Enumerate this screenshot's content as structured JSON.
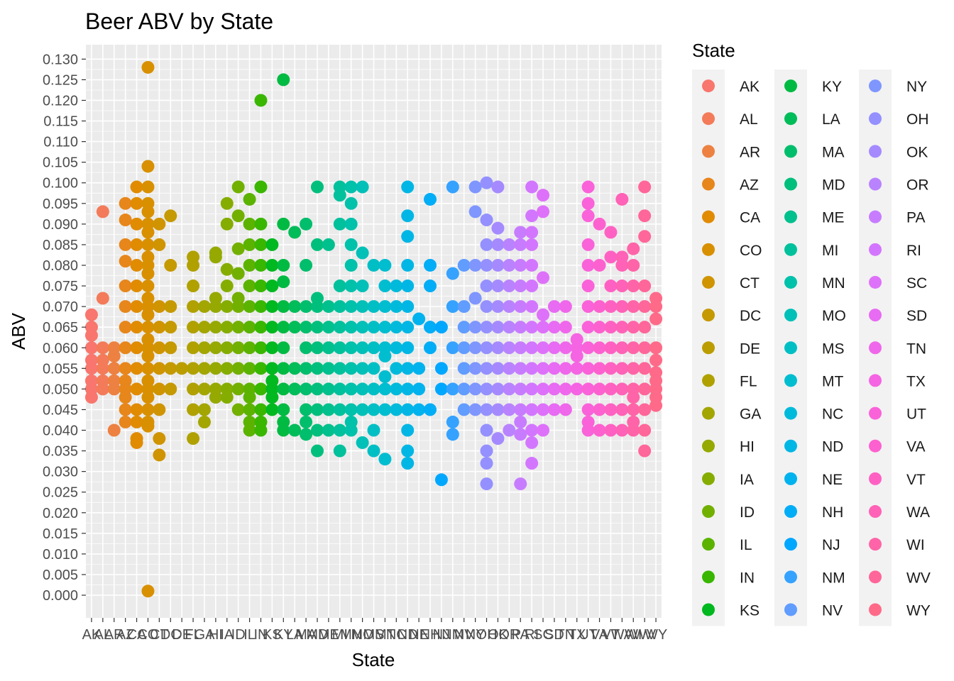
{
  "chart_data": {
    "type": "scatter",
    "title": "Beer ABV by State",
    "xlabel": "State",
    "ylabel": "ABV",
    "ylim": [
      -0.0055,
      0.1335
    ],
    "grid": true,
    "legend_title": "State",
    "legend_position": "right",
    "y_ticks": [
      "0.000",
      "0.005",
      "0.010",
      "0.015",
      "0.020",
      "0.025",
      "0.030",
      "0.035",
      "0.040",
      "0.045",
      "0.050",
      "0.055",
      "0.060",
      "0.065",
      "0.070",
      "0.075",
      "0.080",
      "0.085",
      "0.090",
      "0.095",
      "0.100",
      "0.105",
      "0.110",
      "0.115",
      "0.120",
      "0.125",
      "0.130"
    ],
    "categories": [
      "AK",
      "AL",
      "AR",
      "AZ",
      "CA",
      "CO",
      "CT",
      "DC",
      "DE",
      "FL",
      "GA",
      "HI",
      "IA",
      "ID",
      "IL",
      "IN",
      "KS",
      "KY",
      "LA",
      "MA",
      "MD",
      "ME",
      "MI",
      "MN",
      "MO",
      "MS",
      "MT",
      "NC",
      "ND",
      "NE",
      "NH",
      "NJ",
      "NM",
      "NV",
      "NY",
      "OH",
      "OK",
      "OR",
      "PA",
      "RI",
      "SC",
      "SD",
      "TN",
      "TX",
      "UT",
      "VA",
      "VT",
      "WA",
      "WI",
      "WV",
      "WY"
    ],
    "colors": [
      "#F8766D",
      "#F37B59",
      "#ED8141",
      "#E7861B",
      "#E08B00",
      "#D89000",
      "#CF9400",
      "#C59900",
      "#BB9D00",
      "#B0A100",
      "#A3A500",
      "#95A900",
      "#85AD00",
      "#72B000",
      "#5BB300",
      "#39B600",
      "#00B81F",
      "#00BA42",
      "#00BC59",
      "#00BE6C",
      "#00BF7D",
      "#00C08D",
      "#00C19C",
      "#00C1AA",
      "#00C0B8",
      "#00BFC4",
      "#00BDD0",
      "#00BADB",
      "#00B6E5",
      "#00B2EE",
      "#00ADF6",
      "#00A7FF",
      "#35A2FF",
      "#619CFF",
      "#7F96FF",
      "#9590FF",
      "#A58AFF",
      "#B983FF",
      "#C77CFF",
      "#D376FF",
      "#DE71F9",
      "#E76BF3",
      "#EF67EB",
      "#F564E3",
      "#FA62D9",
      "#FD61CF",
      "#FF61C3",
      "#FF62B6",
      "#FF64A8",
      "#FF6699",
      "#FF6A89"
    ],
    "values": [
      [
        0.048,
        0.05,
        0.052,
        0.055,
        0.057,
        0.06,
        0.063,
        0.065,
        0.068
      ],
      [
        0.05,
        0.052,
        0.055,
        0.057,
        0.06,
        0.072,
        0.093
      ],
      [
        0.04,
        0.05,
        0.052,
        0.055,
        0.058,
        0.06
      ],
      [
        0.042,
        0.045,
        0.048,
        0.05,
        0.052,
        0.055,
        0.06,
        0.065,
        0.07,
        0.075,
        0.081,
        0.085,
        0.091,
        0.095
      ],
      [
        0.037,
        0.038,
        0.042,
        0.045,
        0.05,
        0.055,
        0.06,
        0.065,
        0.07,
        0.075,
        0.08,
        0.085,
        0.09,
        0.095,
        0.099
      ],
      [
        0.001,
        0.041,
        0.042,
        0.045,
        0.048,
        0.05,
        0.052,
        0.055,
        0.058,
        0.06,
        0.062,
        0.065,
        0.068,
        0.07,
        0.072,
        0.075,
        0.078,
        0.08,
        0.082,
        0.085,
        0.088,
        0.09,
        0.093,
        0.095,
        0.099,
        0.104,
        0.128
      ],
      [
        0.034,
        0.038,
        0.045,
        0.05,
        0.055,
        0.06,
        0.065,
        0.07,
        0.085,
        0.09
      ],
      [
        0.05,
        0.055,
        0.06,
        0.065,
        0.07,
        0.08,
        0.092
      ],
      [
        0.055
      ],
      [
        0.038,
        0.045,
        0.05,
        0.055,
        0.06,
        0.065,
        0.07,
        0.075,
        0.08,
        0.082
      ],
      [
        0.042,
        0.045,
        0.05,
        0.055,
        0.06,
        0.065,
        0.07
      ],
      [
        0.048,
        0.05,
        0.055,
        0.06,
        0.065,
        0.07,
        0.072,
        0.082,
        0.083
      ],
      [
        0.048,
        0.05,
        0.055,
        0.06,
        0.065,
        0.07,
        0.075,
        0.079,
        0.09,
        0.095
      ],
      [
        0.045,
        0.05,
        0.055,
        0.06,
        0.065,
        0.07,
        0.072,
        0.078,
        0.084,
        0.092,
        0.099
      ],
      [
        0.04,
        0.042,
        0.045,
        0.048,
        0.05,
        0.055,
        0.06,
        0.065,
        0.07,
        0.075,
        0.08,
        0.085,
        0.09,
        0.096
      ],
      [
        0.04,
        0.042,
        0.045,
        0.05,
        0.055,
        0.06,
        0.065,
        0.07,
        0.075,
        0.08,
        0.085,
        0.09,
        0.099,
        0.12
      ],
      [
        0.045,
        0.048,
        0.05,
        0.052,
        0.055,
        0.06,
        0.065,
        0.07,
        0.075,
        0.08,
        0.085
      ],
      [
        0.04,
        0.042,
        0.045,
        0.05,
        0.055,
        0.06,
        0.065,
        0.07,
        0.076,
        0.08,
        0.09,
        0.125
      ],
      [
        0.04,
        0.05,
        0.055,
        0.065,
        0.07,
        0.088
      ],
      [
        0.039,
        0.042,
        0.045,
        0.05,
        0.055,
        0.06,
        0.065,
        0.07,
        0.08,
        0.09
      ],
      [
        0.035,
        0.04,
        0.045,
        0.05,
        0.055,
        0.06,
        0.065,
        0.07,
        0.072,
        0.085,
        0.099
      ],
      [
        0.04,
        0.045,
        0.05,
        0.055,
        0.06,
        0.065,
        0.07,
        0.085
      ],
      [
        0.035,
        0.04,
        0.045,
        0.05,
        0.055,
        0.06,
        0.065,
        0.07,
        0.075,
        0.09,
        0.097,
        0.099
      ],
      [
        0.04,
        0.042,
        0.045,
        0.05,
        0.055,
        0.06,
        0.065,
        0.07,
        0.075,
        0.08,
        0.085,
        0.09,
        0.095,
        0.099
      ],
      [
        0.037,
        0.045,
        0.05,
        0.055,
        0.06,
        0.065,
        0.07,
        0.075,
        0.083,
        0.099
      ],
      [
        0.035,
        0.04,
        0.045,
        0.05,
        0.055,
        0.06,
        0.065,
        0.07,
        0.08
      ],
      [
        0.033,
        0.045,
        0.05,
        0.053,
        0.058,
        0.06,
        0.065,
        0.07,
        0.075,
        0.08
      ],
      [
        0.045,
        0.05,
        0.055,
        0.06,
        0.065,
        0.07,
        0.075
      ],
      [
        0.032,
        0.035,
        0.04,
        0.045,
        0.05,
        0.055,
        0.06,
        0.065,
        0.07,
        0.075,
        0.08,
        0.087,
        0.092,
        0.099
      ],
      [
        0.045,
        0.05,
        0.055,
        0.067
      ],
      [
        0.045,
        0.06,
        0.065,
        0.075,
        0.08,
        0.096
      ],
      [
        0.028,
        0.05,
        0.055,
        0.065
      ],
      [
        0.039,
        0.042,
        0.05,
        0.06,
        0.07,
        0.078,
        0.099
      ],
      [
        0.045,
        0.05,
        0.055,
        0.06,
        0.065,
        0.07,
        0.08
      ],
      [
        0.045,
        0.05,
        0.055,
        0.06,
        0.065,
        0.072,
        0.08,
        0.093,
        0.099
      ],
      [
        0.027,
        0.032,
        0.035,
        0.04,
        0.045,
        0.05,
        0.055,
        0.06,
        0.065,
        0.07,
        0.075,
        0.08,
        0.085,
        0.091,
        0.1
      ],
      [
        0.038,
        0.045,
        0.05,
        0.055,
        0.06,
        0.065,
        0.07,
        0.075,
        0.08,
        0.085,
        0.089,
        0.099
      ],
      [
        0.04,
        0.045,
        0.05,
        0.055,
        0.06,
        0.065,
        0.07,
        0.075,
        0.08,
        0.085
      ],
      [
        0.027,
        0.039,
        0.042,
        0.045,
        0.05,
        0.055,
        0.06,
        0.065,
        0.07,
        0.075,
        0.08,
        0.085,
        0.088
      ],
      [
        0.032,
        0.037,
        0.04,
        0.045,
        0.05,
        0.055,
        0.06,
        0.065,
        0.07,
        0.075,
        0.08,
        0.085,
        0.088,
        0.092,
        0.099
      ],
      [
        0.04,
        0.045,
        0.05,
        0.055,
        0.06,
        0.065,
        0.068,
        0.077,
        0.093,
        0.097
      ],
      [
        0.045,
        0.05,
        0.055,
        0.06,
        0.065,
        0.07
      ],
      [
        0.045,
        0.05,
        0.055,
        0.06,
        0.065,
        0.07
      ],
      [
        0.05,
        0.055,
        0.058,
        0.06,
        0.062
      ],
      [
        0.04,
        0.042,
        0.045,
        0.05,
        0.055,
        0.06,
        0.065,
        0.07,
        0.075,
        0.08,
        0.085,
        0.092,
        0.095,
        0.099
      ],
      [
        0.04,
        0.045,
        0.05,
        0.055,
        0.06,
        0.065,
        0.07,
        0.08,
        0.09
      ],
      [
        0.04,
        0.045,
        0.05,
        0.055,
        0.06,
        0.065,
        0.07,
        0.075,
        0.082,
        0.088
      ],
      [
        0.04,
        0.045,
        0.05,
        0.055,
        0.06,
        0.065,
        0.07,
        0.075,
        0.08,
        0.082,
        0.096
      ],
      [
        0.04,
        0.042,
        0.045,
        0.048,
        0.05,
        0.055,
        0.06,
        0.065,
        0.07,
        0.075,
        0.08,
        0.084
      ],
      [
        0.035,
        0.04,
        0.045,
        0.05,
        0.055,
        0.06,
        0.065,
        0.07,
        0.075,
        0.087,
        0.092,
        0.099
      ],
      [
        0.046,
        0.048,
        0.05,
        0.052,
        0.054,
        0.057,
        0.06,
        0.067,
        0.07,
        0.072
      ]
    ]
  }
}
